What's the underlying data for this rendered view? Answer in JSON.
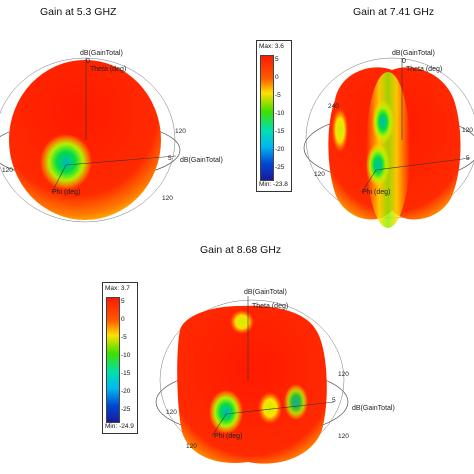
{
  "panels": [
    {
      "title": "Gain at 5.3 GHZ",
      "axis_labels": {
        "z": "dB(GainTotal)",
        "theta": "Theta (deg)",
        "zero": "0",
        "phi": "Phi (deg)",
        "r": "dB(GainTotal)"
      },
      "ticks": [
        "120",
        "120",
        "5",
        "120"
      ]
    },
    {
      "title": "Gain at 7.41 GHz",
      "axis_labels": {
        "z": "dB(GainTotal)",
        "theta": "Theta (deg)",
        "zero": "0",
        "phi": "Phi (deg)",
        "r": "dB(GainTotal)"
      },
      "ticks": [
        "240",
        "120",
        "5",
        "120"
      ]
    },
    {
      "title": "Gain at 8.68 GHz",
      "axis_labels": {
        "z": "dB(GainTotal)",
        "theta": "Theta (deg)",
        "zero": "0",
        "phi": "Phi (deg)",
        "r": "dB(GainTotal)"
      },
      "ticks": [
        "120",
        "120",
        "5",
        "120",
        "120"
      ]
    }
  ],
  "legends": [
    {
      "max": "Max: 3.6",
      "min": "Min: -23.8",
      "ticks": [
        "5",
        "0",
        "-5",
        "-10",
        "-15",
        "-20",
        "-25"
      ]
    },
    {
      "max": "Max: 3.7",
      "min": "Min: -24.9",
      "ticks": [
        "5",
        "0",
        "-5",
        "-10",
        "-15",
        "-20",
        "-25"
      ]
    }
  ],
  "colors": {
    "high": "#ff1a00",
    "mid": "#ffe800",
    "low": "#00e03a",
    "cyan": "#00d9d9",
    "blue": "#0033cc",
    "navy": "#1a1a9e"
  }
}
